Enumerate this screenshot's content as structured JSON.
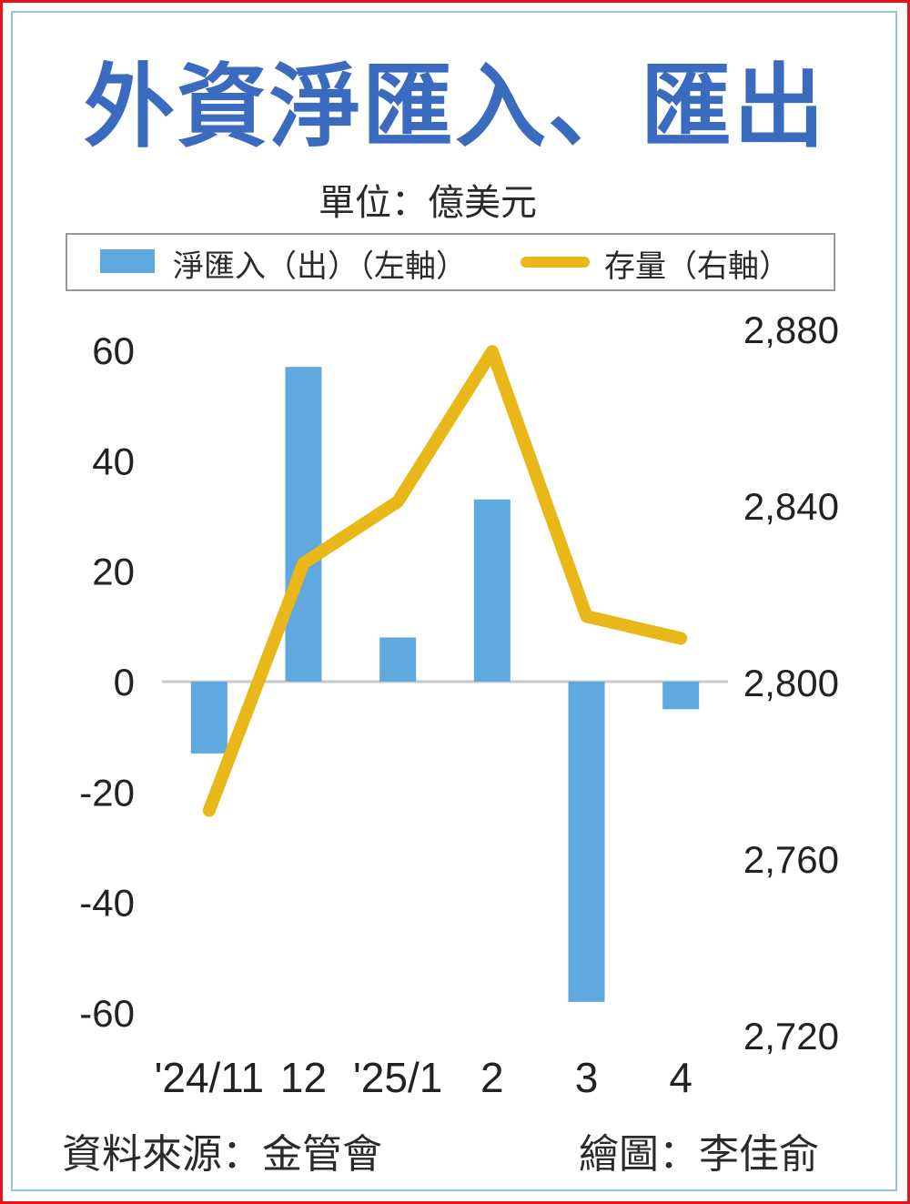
{
  "title": "外資淨匯入、匯出",
  "unit": "單位：億美元",
  "legend": {
    "bar_label": "淨匯入（出）（左軸）",
    "line_label": "存量（右軸）"
  },
  "source": "資料來源：金管會",
  "credit": "繪圖：李佳俞",
  "colors": {
    "title": "#3b6bbf",
    "bar": "#5fa8e0",
    "line": "#e8b718",
    "frame": "#e8141c",
    "inner_frame": "#8fc3ea"
  },
  "chart_data": {
    "type": "bar",
    "categories": [
      "'24/11",
      "12",
      "'25/1",
      "2",
      "3",
      "4"
    ],
    "series": [
      {
        "name": "淨匯入（出）（左軸）",
        "type": "bar",
        "axis": "left",
        "values": [
          -13,
          57,
          8,
          33,
          -58,
          -5
        ]
      },
      {
        "name": "存量（右軸）",
        "type": "line",
        "axis": "right",
        "values": [
          2771,
          2827,
          2841,
          2875,
          2815,
          2810
        ]
      }
    ],
    "left_axis": {
      "ylim": [
        -60,
        60
      ],
      "ticks": [
        "60",
        "40",
        "20",
        "0",
        "-20",
        "-40",
        "-60"
      ],
      "tick_values": [
        60,
        40,
        20,
        0,
        -20,
        -40,
        -60
      ]
    },
    "right_axis": {
      "ylim": [
        2720,
        2880
      ],
      "ticks": [
        "2,880",
        "2,840",
        "2,800",
        "2,760",
        "2,720"
      ],
      "tick_values": [
        2880,
        2840,
        2800,
        2760,
        2720
      ]
    },
    "grid": false,
    "legend_position": "top"
  }
}
